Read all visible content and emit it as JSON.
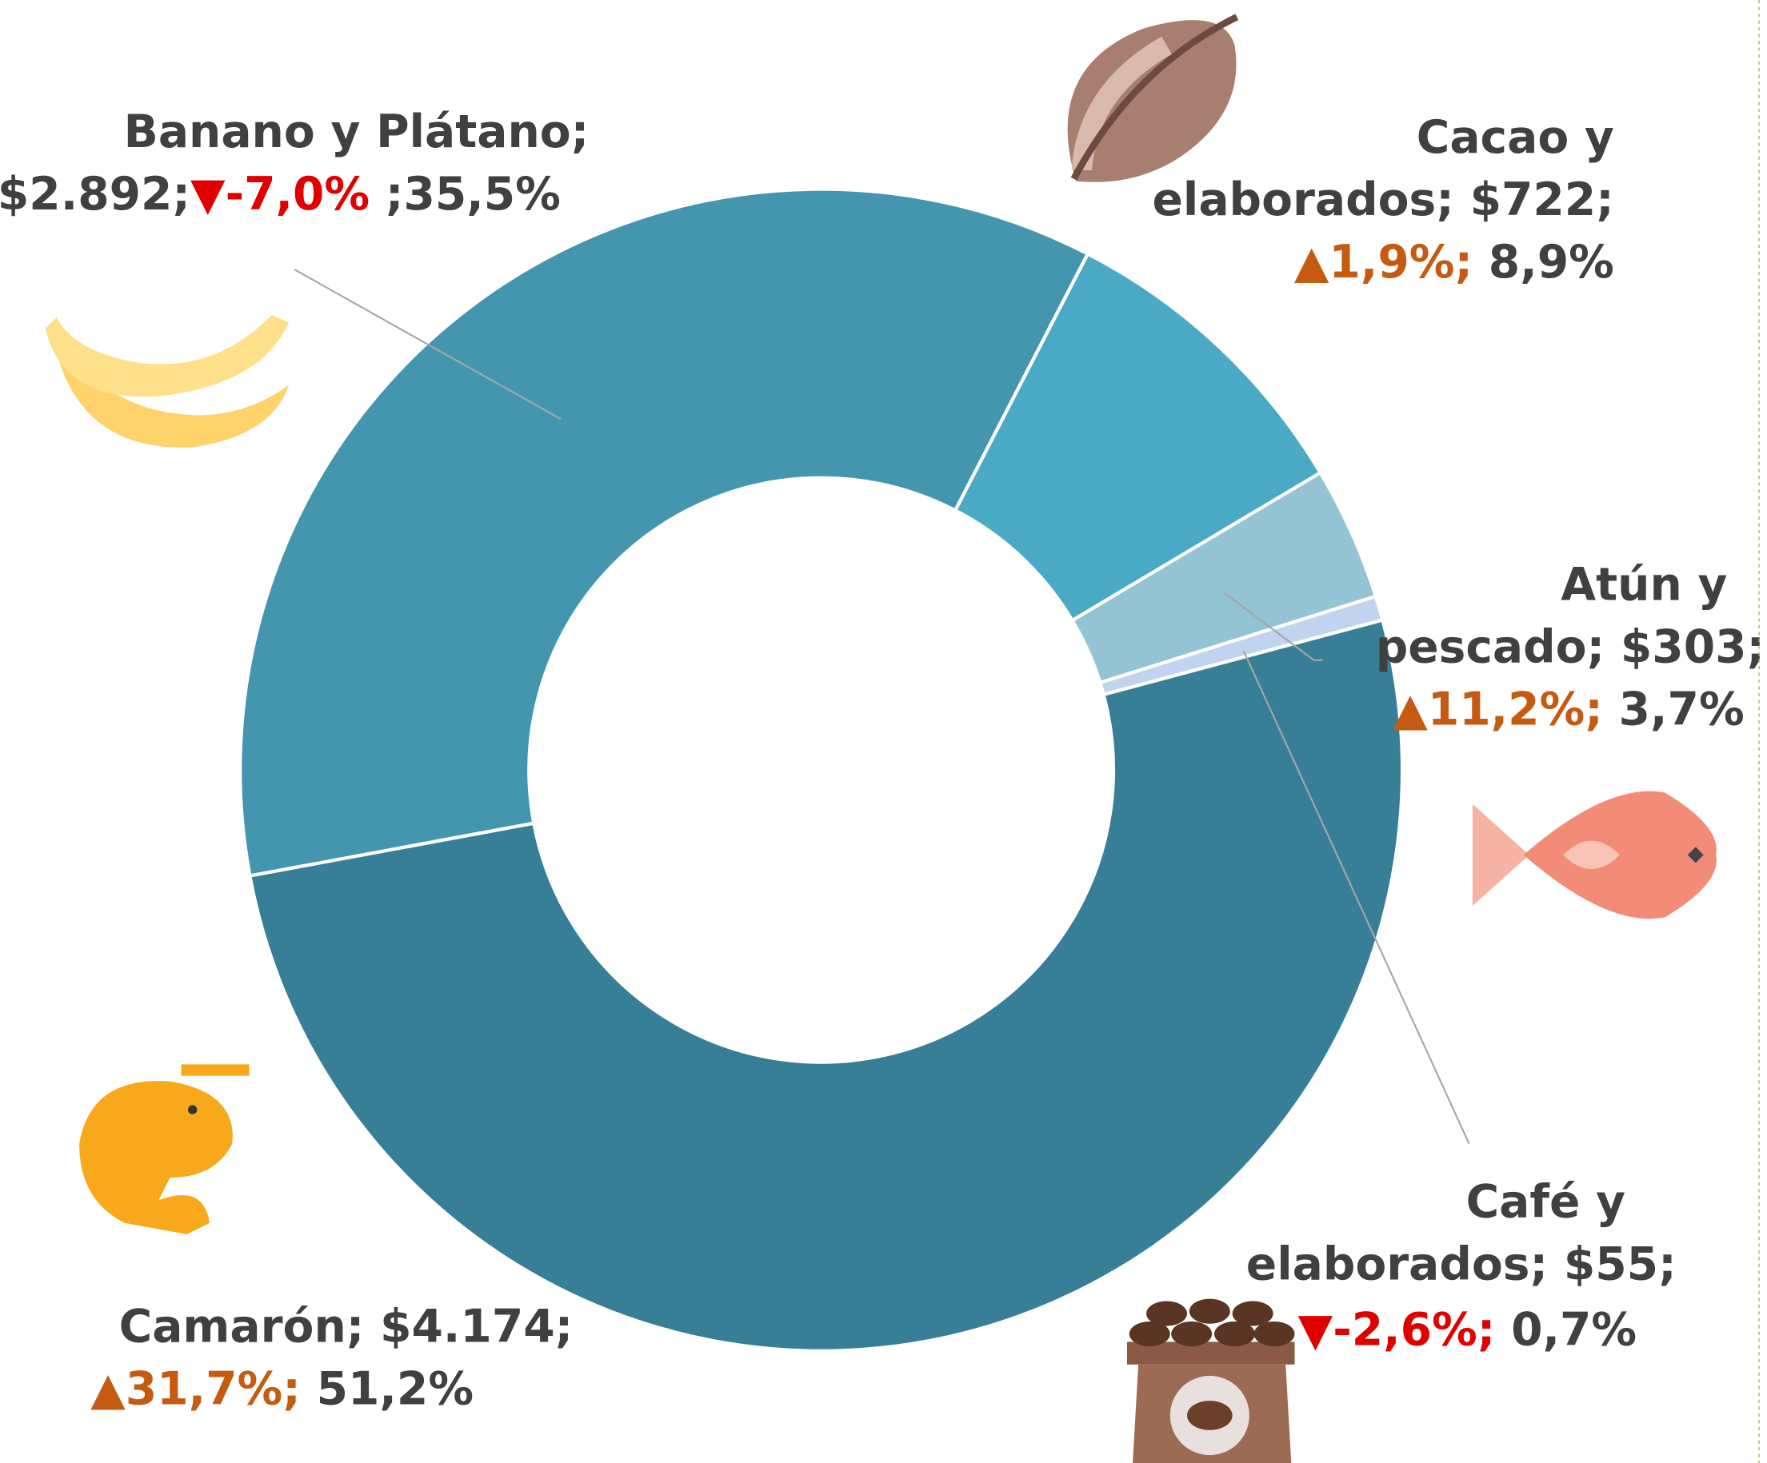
{
  "chart_data": {
    "type": "donut",
    "categories": [
      "Banano y Plátano",
      "Cacao y elaborados",
      "Atún y pescado",
      "Café y elaborados",
      "Camarón"
    ],
    "values": [
      2892,
      722,
      303,
      55,
      4174
    ],
    "value_labels": [
      "$2.892",
      "$722",
      "$303",
      "$55",
      "$4.174"
    ],
    "growth": [
      -7.0,
      1.9,
      11.2,
      -2.6,
      31.7
    ],
    "growth_labels": [
      "-7,0%",
      "1,9%",
      "11,2%",
      "-2,6%",
      "31,7%"
    ],
    "shares": [
      35.5,
      8.9,
      3.7,
      0.7,
      51.2
    ],
    "share_labels": [
      "35,5%",
      "8,9%",
      "3,7%",
      "0,7%",
      "51,2%"
    ],
    "separator": ";",
    "up_marker": "▲",
    "down_marker": "▼",
    "colors": [
      "#4496af",
      "#4aaac6",
      "#94c3d4",
      "#c1d3ef",
      "#377f96"
    ],
    "up_color": "#c55a11",
    "down_color": "#e00000"
  }
}
